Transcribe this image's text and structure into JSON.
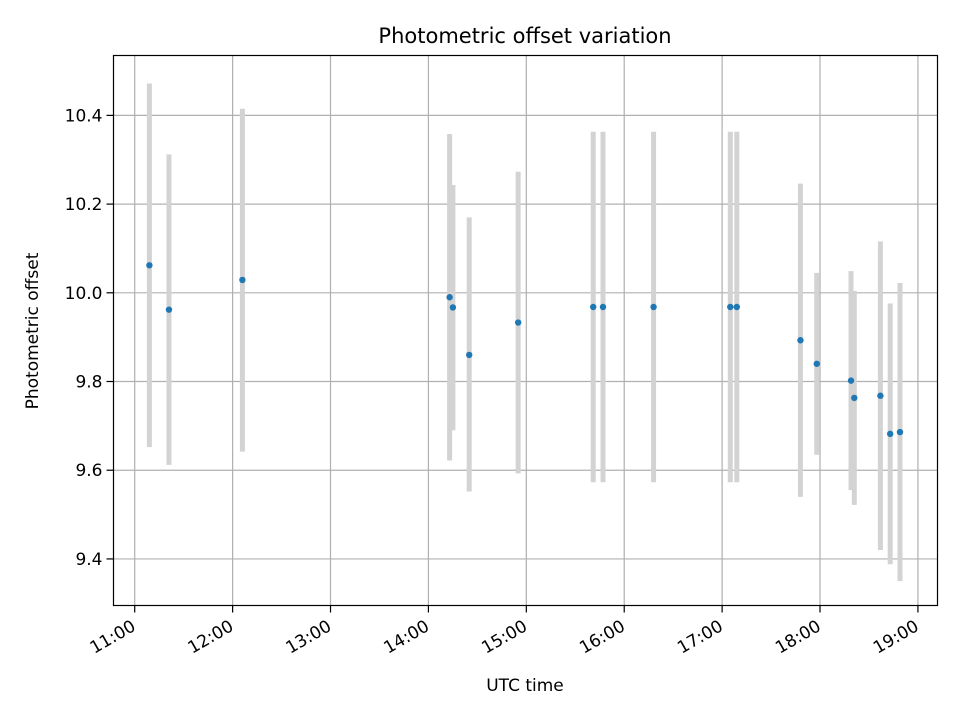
{
  "chart_data": {
    "type": "scatter",
    "title": "Photometric offset variation",
    "xlabel": "UTC time",
    "ylabel": "Photometric offset",
    "xlim": [
      "10:47",
      "19:12"
    ],
    "ylim": [
      9.295,
      10.535
    ],
    "x_ticks": [
      "11:00",
      "12:00",
      "13:00",
      "14:00",
      "15:00",
      "16:00",
      "17:00",
      "18:00",
      "19:00"
    ],
    "y_ticks": [
      "9.4",
      "9.6",
      "9.8",
      "10.0",
      "10.2",
      "10.4"
    ],
    "grid": true,
    "point_color": "#1f77b4",
    "errorbar_color": "#d3d3d3",
    "points": [
      {
        "x": "11:09",
        "y": 10.062,
        "low": 9.652,
        "high": 10.472
      },
      {
        "x": "11:21",
        "y": 9.962,
        "low": 9.612,
        "high": 10.312
      },
      {
        "x": "12:06",
        "y": 10.029,
        "low": 9.642,
        "high": 10.415
      },
      {
        "x": "14:13",
        "y": 9.99,
        "low": 9.622,
        "high": 10.358
      },
      {
        "x": "14:15",
        "y": 9.967,
        "low": 9.69,
        "high": 10.243
      },
      {
        "x": "14:25",
        "y": 9.86,
        "low": 9.552,
        "high": 10.17
      },
      {
        "x": "14:55",
        "y": 9.933,
        "low": 9.593,
        "high": 10.273
      },
      {
        "x": "15:41",
        "y": 9.968,
        "low": 9.573,
        "high": 10.363
      },
      {
        "x": "15:47",
        "y": 9.968,
        "low": 9.573,
        "high": 10.363
      },
      {
        "x": "16:18",
        "y": 9.968,
        "low": 9.573,
        "high": 10.363
      },
      {
        "x": "17:05",
        "y": 9.968,
        "low": 9.573,
        "high": 10.363
      },
      {
        "x": "17:09",
        "y": 9.968,
        "low": 9.573,
        "high": 10.363
      },
      {
        "x": "17:48",
        "y": 9.893,
        "low": 9.54,
        "high": 10.246
      },
      {
        "x": "17:58",
        "y": 9.84,
        "low": 9.635,
        "high": 10.045
      },
      {
        "x": "18:19",
        "y": 9.802,
        "low": 9.555,
        "high": 10.049
      },
      {
        "x": "18:21",
        "y": 9.763,
        "low": 9.522,
        "high": 10.004
      },
      {
        "x": "18:37",
        "y": 9.768,
        "low": 9.42,
        "high": 10.116
      },
      {
        "x": "18:43",
        "y": 9.682,
        "low": 9.388,
        "high": 9.976
      },
      {
        "x": "18:49",
        "y": 9.686,
        "low": 9.35,
        "high": 10.022
      }
    ]
  }
}
